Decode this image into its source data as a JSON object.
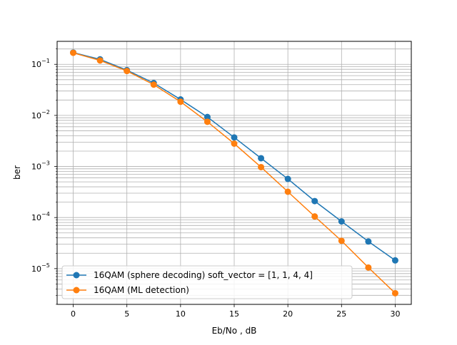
{
  "chart_data": {
    "type": "line",
    "title": "",
    "xlabel": "Eb/No , dB",
    "ylabel": "ber",
    "xlim": [
      -1.5,
      31.5
    ],
    "ylim_log10": [
      -5.7,
      -0.55
    ],
    "yscale": "log",
    "grid": "major and minor",
    "legend_position": "lower-left",
    "x_ticks": [
      0,
      5,
      10,
      15,
      20,
      25,
      30
    ],
    "y_ticks": [
      {
        "exp": -5,
        "label": "10",
        "sup": "−5"
      },
      {
        "exp": -4,
        "label": "10",
        "sup": "−4"
      },
      {
        "exp": -3,
        "label": "10",
        "sup": "−3"
      },
      {
        "exp": -2,
        "label": "10",
        "sup": "−2"
      },
      {
        "exp": -1,
        "label": "10",
        "sup": "−1"
      }
    ],
    "x": [
      0,
      2.5,
      5,
      7.5,
      10,
      12.5,
      15,
      17.5,
      20,
      22.5,
      25,
      27.5,
      30
    ],
    "series": [
      {
        "name": "16QAM (sphere decoding) soft_vector = [1, 1, 4, 4]",
        "color": "#1f77b4",
        "values": [
          0.17,
          0.125,
          0.077,
          0.043,
          0.0205,
          0.0093,
          0.0037,
          0.00145,
          0.00057,
          0.00021,
          8.4e-05,
          3.4e-05,
          1.45e-05
        ]
      },
      {
        "name": "16QAM (ML detection)",
        "color": "#ff7f0e",
        "values": [
          0.168,
          0.119,
          0.074,
          0.04,
          0.0185,
          0.0075,
          0.0028,
          0.00097,
          0.00032,
          0.000105,
          3.5e-05,
          1.05e-05,
          3.3e-06
        ]
      }
    ]
  }
}
